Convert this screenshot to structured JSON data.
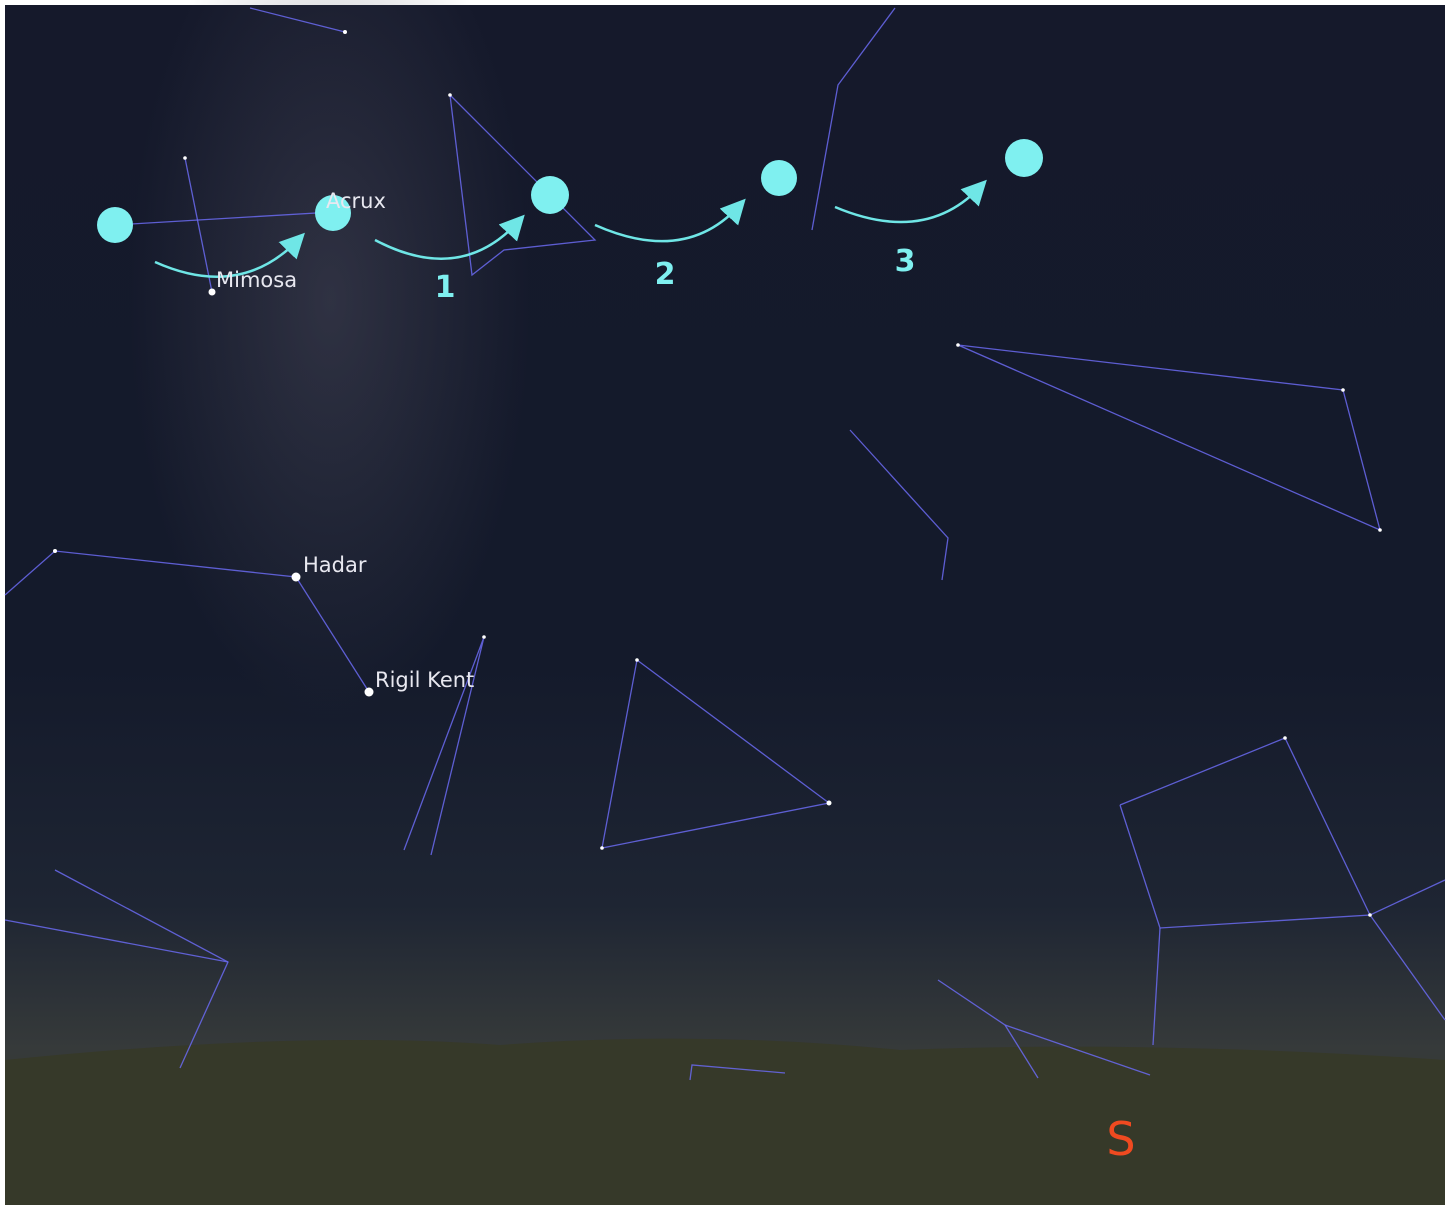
{
  "stars": [
    {
      "label": "Acrux"
    },
    {
      "label": "Mimosa"
    },
    {
      "label": "Hadar"
    },
    {
      "label": "Rigil Kent"
    }
  ],
  "steps": [
    "1",
    "2",
    "3"
  ],
  "compass": "S"
}
